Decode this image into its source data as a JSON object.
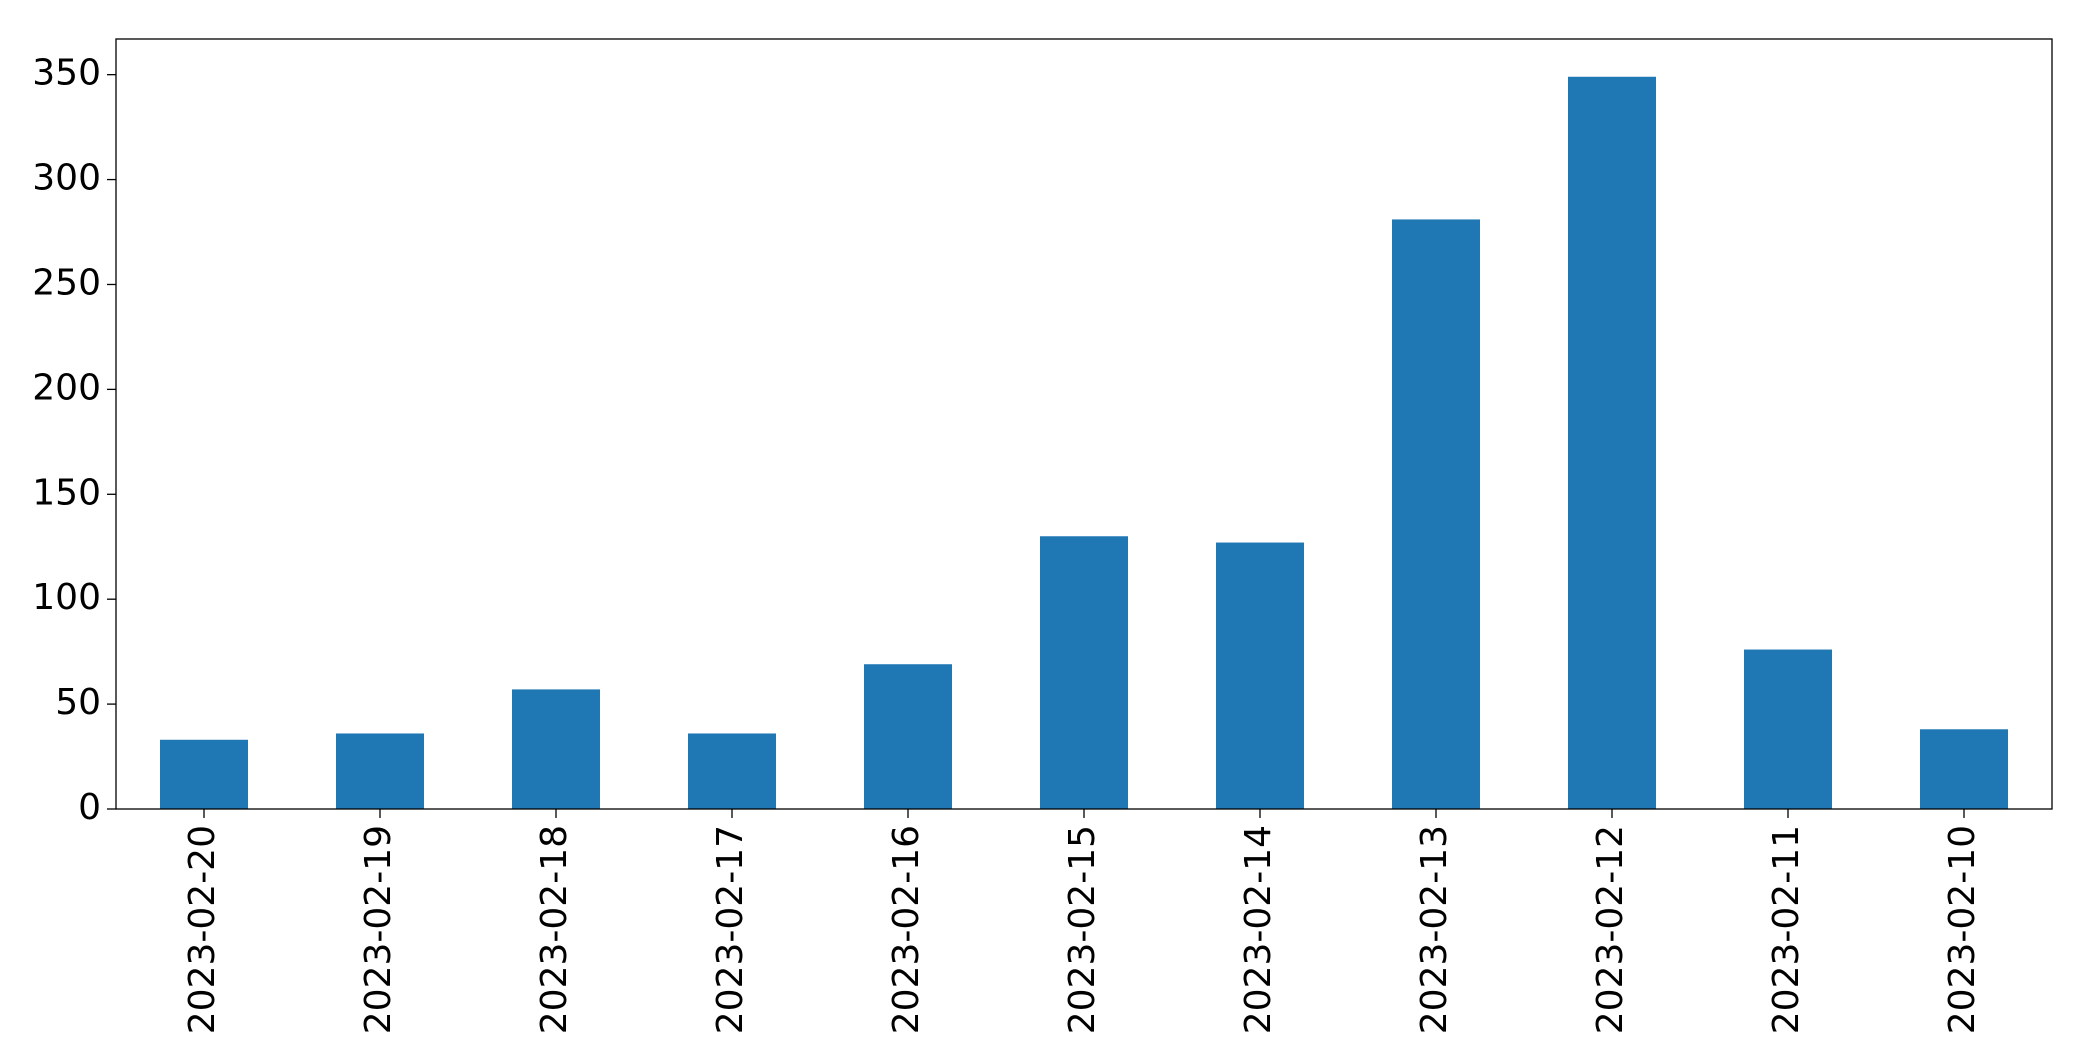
{
  "chart_data": {
    "type": "bar",
    "categories": [
      "2023-02-20",
      "2023-02-19",
      "2023-02-18",
      "2023-02-17",
      "2023-02-16",
      "2023-02-15",
      "2023-02-14",
      "2023-02-13",
      "2023-02-12",
      "2023-02-11",
      "2023-02-10"
    ],
    "values": [
      33,
      36,
      57,
      36,
      69,
      130,
      127,
      281,
      349,
      76,
      38
    ],
    "color": "#1f77b4",
    "ylim": [
      0,
      367
    ],
    "yticks": [
      0,
      50,
      100,
      150,
      200,
      250,
      300,
      350
    ],
    "grid": false
  }
}
